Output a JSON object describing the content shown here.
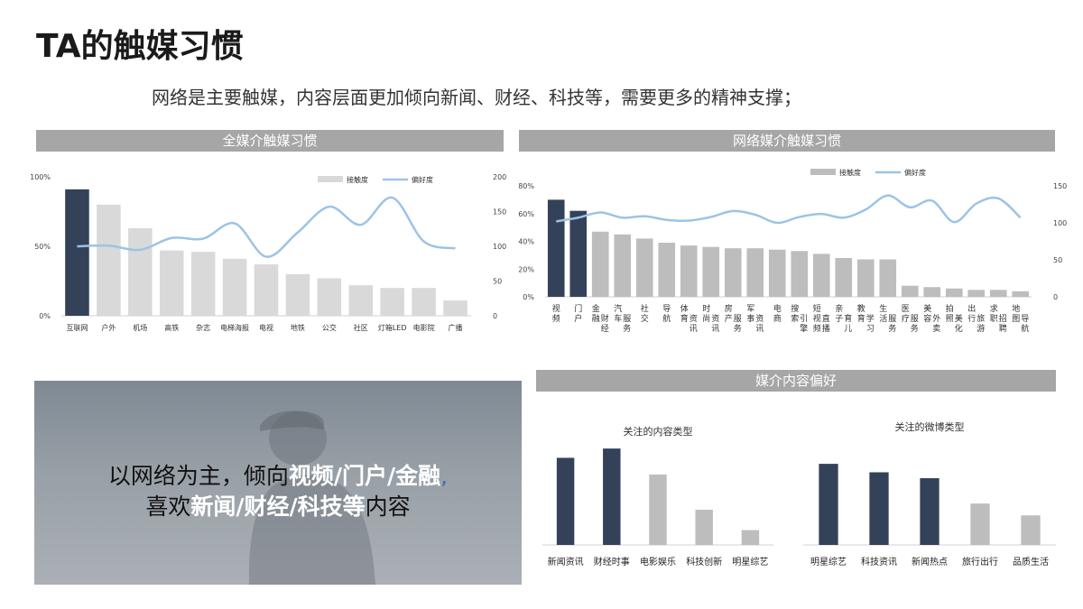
{
  "title": "TA的触媒习惯",
  "subtitle": "网络是主要触媒，内容层面更加倾向新闻、财经、科技等，需要更多的精神支撑；",
  "bands": {
    "all_media": "全媒介触媒习惯",
    "net_media": "网络媒介触媒习惯",
    "content_pref": "媒介内容偏好"
  },
  "photo_text": {
    "l1_a": "以网络为主，倾向",
    "l1_b": "视频/门户/金融",
    "l1_c": ",",
    "l2_a": "喜欢",
    "l2_b": "新闻/财经/科技等",
    "l2_c": "内容"
  },
  "colors": {
    "dark": "#344259",
    "light": "#d9d9d9",
    "mid": "#bdbdbd",
    "line": "#9dc3e6",
    "band": "#a6a6a6"
  },
  "chart_data": [
    {
      "type": "bar",
      "legend": [
        "接触度",
        "偏好度"
      ],
      "legend_position": "top-right",
      "categories": [
        "互联网",
        "户外",
        "机场",
        "高铁",
        "杂志",
        "电梯海报",
        "电视",
        "地铁",
        "公交",
        "社区",
        "灯箱LED",
        "电影院",
        "广播"
      ],
      "series": [
        {
          "name": "接触度",
          "axis": "left",
          "values": [
            91,
            80,
            63,
            47,
            46,
            41,
            37,
            30,
            27,
            22,
            20,
            20,
            11
          ],
          "highlight_count": 1
        },
        {
          "name": "偏好度",
          "axis": "right",
          "type": "line",
          "values": [
            100,
            101,
            95,
            112,
            111,
            133,
            85,
            120,
            157,
            131,
            170,
            107,
            97
          ]
        }
      ],
      "left_ticks": [
        "0%",
        "50%",
        "100%"
      ],
      "left_max": 100,
      "right_ticks": [
        "0",
        "50",
        "100",
        "150",
        "200"
      ],
      "right_max": 200
    },
    {
      "type": "bar",
      "legend": [
        "接触度",
        "偏好度"
      ],
      "legend_position": "top-right",
      "categories": [
        "视频",
        "门户",
        "金融财经",
        "汽车服务",
        "社交",
        "导航",
        "体育资讯",
        "时尚资讯",
        "房产服务",
        "军事资讯",
        "电商",
        "搜索引擎",
        "短视频直播",
        "亲子育儿",
        "教育学习",
        "生活服务",
        "医疗服务",
        "美容外卖",
        "拍照美化",
        "出行旅游",
        "求职招聘",
        "地图导航"
      ],
      "series": [
        {
          "name": "接触度",
          "axis": "left",
          "values": [
            70,
            62,
            47,
            45,
            42,
            39,
            37,
            36,
            35,
            35,
            34,
            33,
            31,
            28,
            27,
            27,
            8,
            7,
            6,
            5,
            5,
            4
          ],
          "highlight_count": 2
        },
        {
          "name": "偏好度",
          "axis": "right",
          "type": "line",
          "values": [
            102,
            107,
            114,
            107,
            109,
            104,
            103,
            108,
            116,
            111,
            100,
            108,
            112,
            107,
            118,
            137,
            121,
            130,
            101,
            126,
            133,
            107
          ]
        }
      ],
      "left_ticks": [
        "0%",
        "20%",
        "40%",
        "60%",
        "80%"
      ],
      "left_max": 80,
      "right_ticks": [
        "0",
        "50",
        "100",
        "150"
      ],
      "right_max": 150
    },
    {
      "type": "bar",
      "title": "关注的内容类型",
      "categories": [
        "新闻资讯",
        "财经时事",
        "电影娱乐",
        "科技创新",
        "明星综艺"
      ],
      "values": [
        94,
        104,
        76,
        38,
        16
      ],
      "highlight_count": 2,
      "ylim": [
        0,
        110
      ]
    },
    {
      "type": "bar",
      "title": "关注的微博类型",
      "categories": [
        "明星综艺",
        "科技资讯",
        "新闻热点",
        "旅行出行",
        "品质生活"
      ],
      "values": [
        96,
        86,
        79,
        49,
        35
      ],
      "highlight_count": 3,
      "ylim": [
        0,
        110
      ]
    }
  ]
}
